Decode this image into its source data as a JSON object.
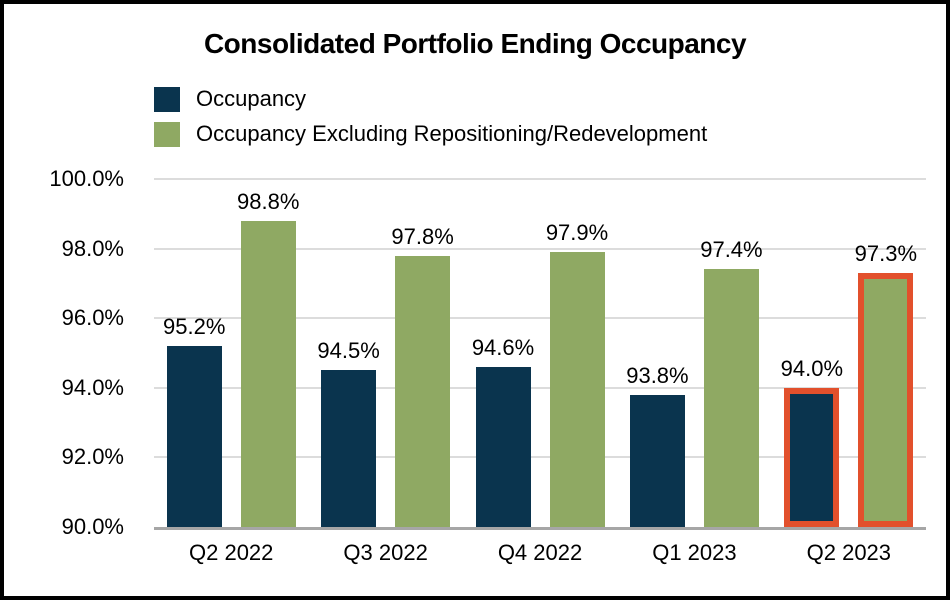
{
  "title": "Consolidated Portfolio Ending Occupancy",
  "legend": {
    "items": [
      {
        "label": "Occupancy",
        "color": "#0a344e"
      },
      {
        "label": "Occupancy Excluding Repositioning/Redevelopment",
        "color": "#8fa963"
      }
    ]
  },
  "chart_data": {
    "type": "bar",
    "title": "Consolidated Portfolio Ending Occupancy",
    "categories": [
      "Q2 2022",
      "Q3 2022",
      "Q4 2022",
      "Q1 2023",
      "Q2 2023"
    ],
    "series": [
      {
        "name": "Occupancy",
        "color": "#0a344e",
        "values": [
          95.2,
          94.5,
          94.6,
          93.8,
          94.0
        ],
        "labels": [
          "95.2%",
          "94.5%",
          "94.6%",
          "93.8%",
          "94.0%"
        ]
      },
      {
        "name": "Occupancy Excluding Repositioning/Redevelopment",
        "color": "#8fa963",
        "values": [
          98.8,
          97.8,
          97.9,
          97.4,
          97.3
        ],
        "labels": [
          "98.8%",
          "97.8%",
          "97.9%",
          "97.4%",
          "97.3%"
        ]
      }
    ],
    "xlabel": "",
    "ylabel": "",
    "ylim": [
      90,
      100
    ],
    "yticks": [
      {
        "value": 90,
        "label": "90.0%"
      },
      {
        "value": 92,
        "label": "92.0%"
      },
      {
        "value": 94,
        "label": "94.0%"
      },
      {
        "value": 96,
        "label": "96.0%"
      },
      {
        "value": 98,
        "label": "98.0%"
      },
      {
        "value": 100,
        "label": "100.0%"
      }
    ],
    "grid": true,
    "legend_position": "top-left",
    "highlight": {
      "category": "Q2 2023",
      "category_index": 4,
      "border_color": "#e2502c"
    }
  },
  "colors": {
    "gridline": "#dcdcdc",
    "axis_line": "#a6a6a6",
    "frame_border": "#000000",
    "background": "#ffffff",
    "text": "#000000"
  }
}
